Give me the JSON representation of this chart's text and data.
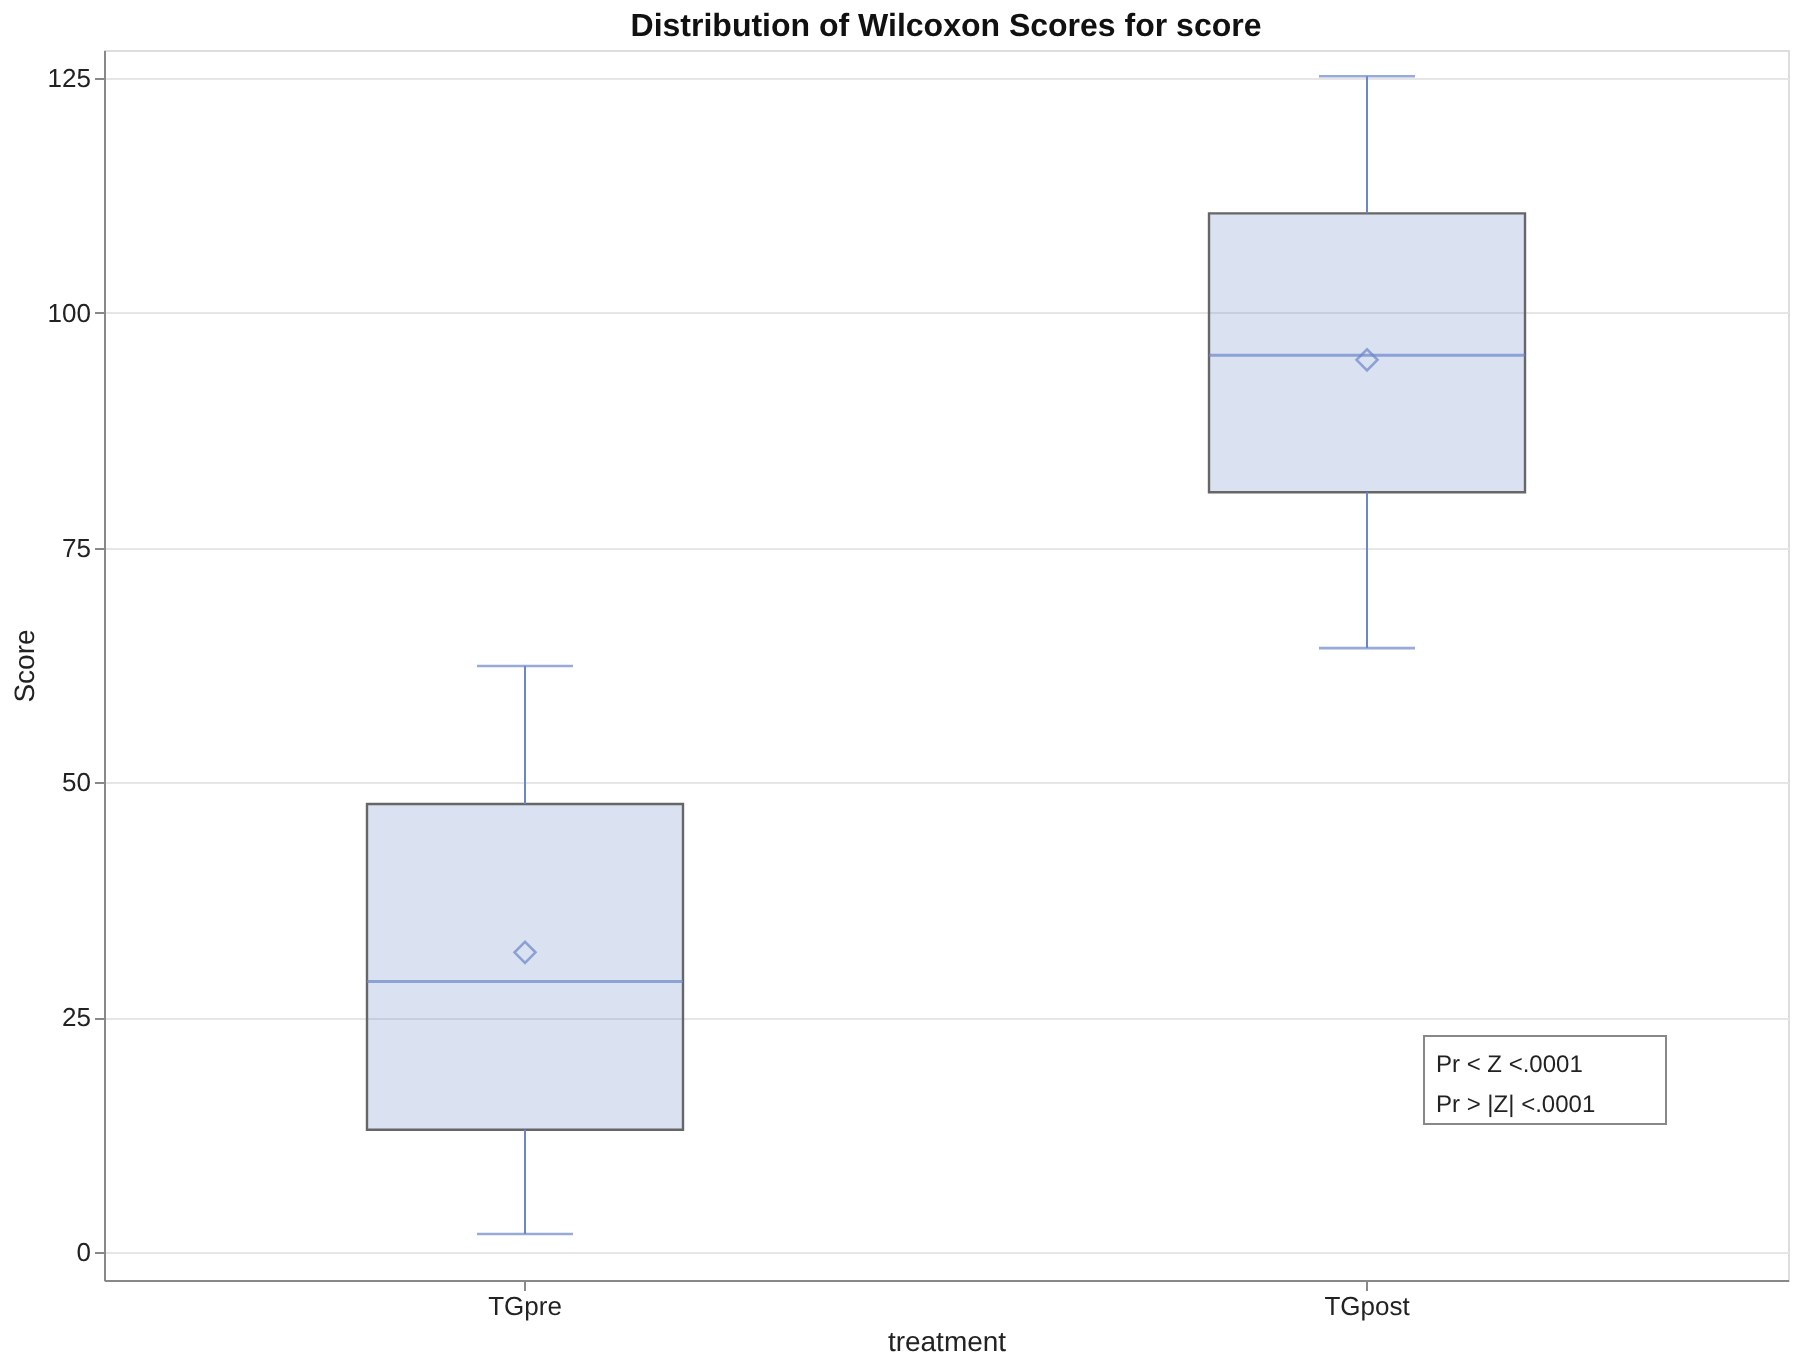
{
  "chart_data": {
    "type": "box",
    "title": "Distribution of Wilcoxon Scores for score",
    "xlabel": "treatment",
    "ylabel": "Score",
    "categories": [
      "TGpre",
      "TGpost"
    ],
    "boxes": [
      {
        "low": 1.9,
        "q1": 13.0,
        "median": 28.8,
        "q3": 47.7,
        "high": 62.4,
        "mean": 31.9
      },
      {
        "low": 64.3,
        "q1": 80.9,
        "median": 95.5,
        "q3": 110.6,
        "high": 125.2,
        "mean": 95.0
      }
    ],
    "color": "#6b86c9",
    "ylim": [
      -3,
      128
    ],
    "yticks": [
      0,
      25,
      50,
      75,
      100,
      125
    ],
    "grid": "y",
    "marker": "diamond",
    "annotations": [
      "Pr < Z   <.0001",
      "Pr > |Z|  <.0001"
    ]
  }
}
